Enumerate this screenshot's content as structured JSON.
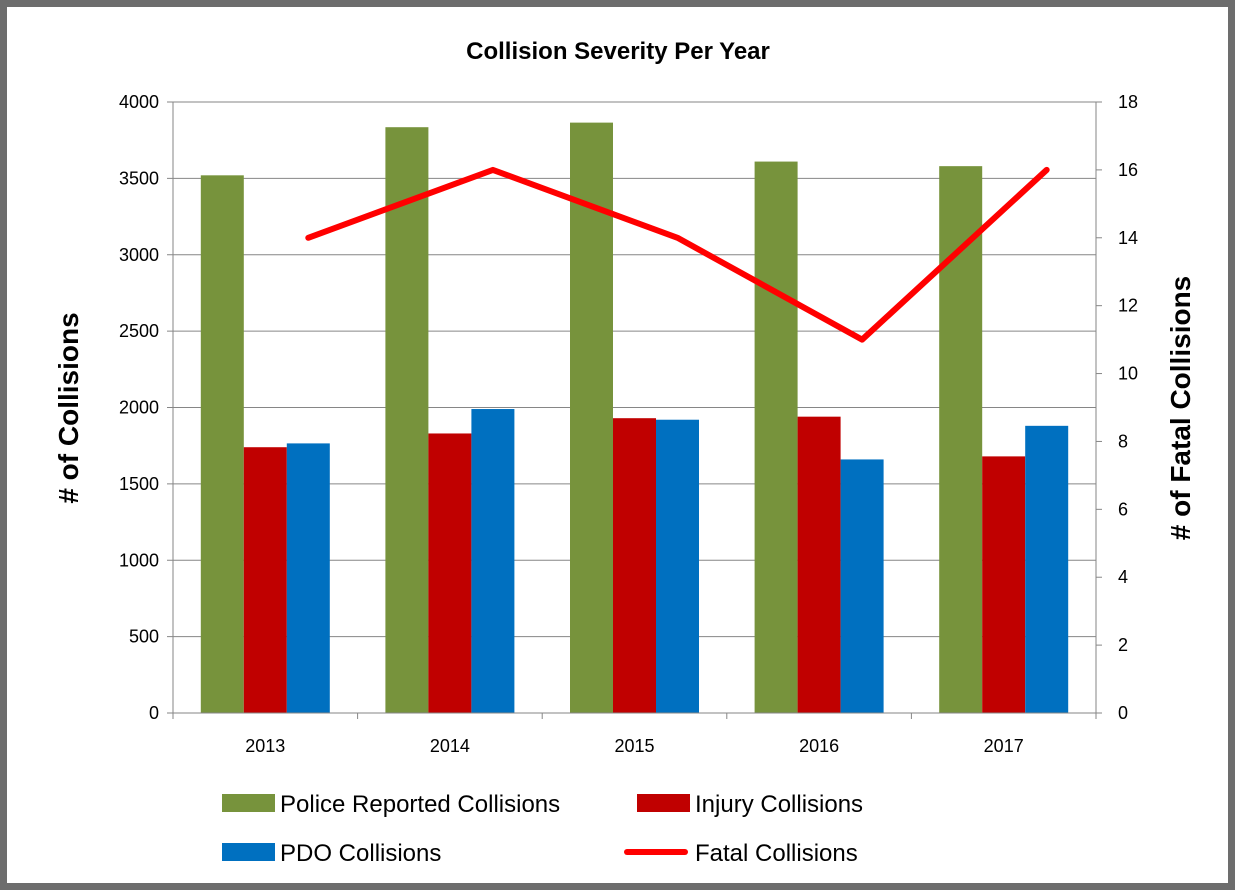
{
  "chart_data": {
    "type": "bar",
    "title": "Collision Severity Per Year",
    "categories": [
      "2013",
      "2014",
      "2015",
      "2016",
      "2017"
    ],
    "xlabel": "",
    "ylabel": "# of Collisions",
    "y2label": "# of Fatal Collisions",
    "ylim": [
      0,
      4000
    ],
    "y2lim": [
      0,
      18
    ],
    "yticks": [
      "0",
      "500",
      "1000",
      "1500",
      "2000",
      "2500",
      "3000",
      "3500",
      "4000"
    ],
    "y2ticks": [
      "0",
      "2",
      "4",
      "6",
      "8",
      "10",
      "12",
      "14",
      "16",
      "18"
    ],
    "grid": true,
    "legend_position": "bottom",
    "series": [
      {
        "name": "Police Reported Collisions",
        "type": "bar",
        "axis": "left",
        "color": "#77933c",
        "values": [
          3520,
          3835,
          3865,
          3610,
          3580
        ]
      },
      {
        "name": "Injury Collisions",
        "type": "bar",
        "axis": "left",
        "color": "#c00000",
        "values": [
          1740,
          1830,
          1930,
          1940,
          1680
        ]
      },
      {
        "name": "PDO Collisions",
        "type": "bar",
        "axis": "left",
        "color": "#0070c0",
        "values": [
          1765,
          1990,
          1920,
          1660,
          1880
        ]
      },
      {
        "name": "Fatal Collisions",
        "type": "line",
        "axis": "right",
        "color": "#ff0000",
        "values": [
          14,
          16,
          14,
          11,
          16
        ]
      }
    ]
  }
}
